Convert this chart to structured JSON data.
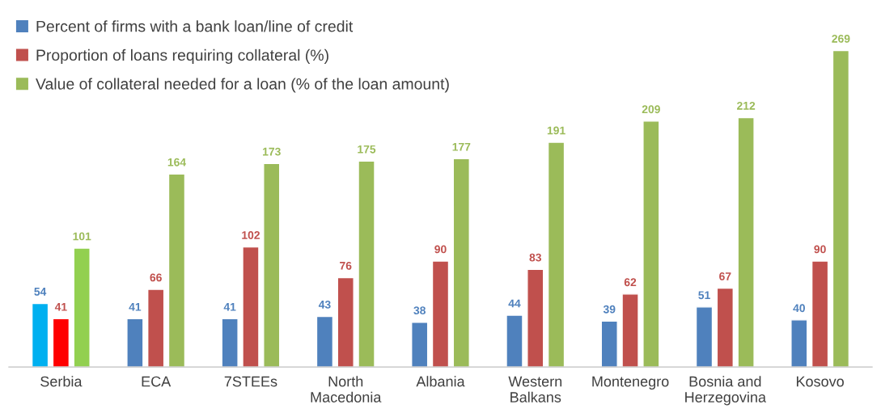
{
  "chart_data": {
    "type": "bar",
    "categories": [
      "Serbia",
      "ECA",
      "7STEEs",
      "North Macedonia",
      "Albania",
      "Western Balkans",
      "Montenegro",
      "Bosnia and Herzegovina",
      "Kosovo"
    ],
    "series": [
      {
        "name": "Percent of firms with a bank loan/line of credit",
        "color": "#4f81bd",
        "colors": [
          "#00b0f0",
          "#4f81bd",
          "#4f81bd",
          "#4f81bd",
          "#4f81bd",
          "#4f81bd",
          "#4f81bd",
          "#4f81bd",
          "#4f81bd"
        ],
        "values": [
          54,
          41,
          41,
          43,
          38,
          44,
          39,
          51,
          40
        ]
      },
      {
        "name": "Proportion of loans requiring collateral (%)",
        "color": "#c0504d",
        "colors": [
          "#ff0000",
          "#c0504d",
          "#c0504d",
          "#c0504d",
          "#c0504d",
          "#c0504d",
          "#c0504d",
          "#c0504d",
          "#c0504d"
        ],
        "values": [
          41,
          66,
          102,
          76,
          90,
          83,
          62,
          67,
          90
        ]
      },
      {
        "name": "Value of collateral needed for a loan (% of the loan amount)",
        "color": "#9bbb59",
        "colors": [
          "#92d050",
          "#9bbb59",
          "#9bbb59",
          "#9bbb59",
          "#9bbb59",
          "#9bbb59",
          "#9bbb59",
          "#9bbb59",
          "#9bbb59"
        ],
        "values": [
          101,
          164,
          173,
          175,
          177,
          191,
          209,
          212,
          269
        ]
      }
    ],
    "data_labels": true,
    "legend": "top left",
    "grid": false
  }
}
